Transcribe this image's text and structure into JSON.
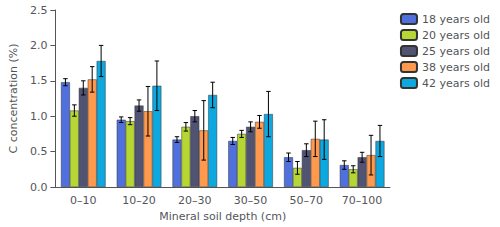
{
  "chart_data": {
    "type": "bar",
    "xlabel": "Mineral soil depth (cm)",
    "ylabel": "C concentration (%)",
    "categories": [
      "0–10",
      "10–20",
      "20–30",
      "30–50",
      "50–70",
      "70–100"
    ],
    "series": [
      {
        "name": "18 years old",
        "values": [
          1.48,
          0.95,
          0.67,
          0.65,
          0.42,
          0.31
        ],
        "errors": [
          0.05,
          0.04,
          0.04,
          0.05,
          0.06,
          0.06
        ]
      },
      {
        "name": "20 years old",
        "values": [
          1.08,
          0.93,
          0.85,
          0.75,
          0.27,
          0.25
        ],
        "errors": [
          0.08,
          0.05,
          0.06,
          0.05,
          0.09,
          0.05
        ]
      },
      {
        "name": "25 years old",
        "values": [
          1.4,
          1.15,
          1.0,
          0.85,
          0.52,
          0.42
        ],
        "errors": [
          0.1,
          0.08,
          0.08,
          0.07,
          0.09,
          0.07
        ]
      },
      {
        "name": "38 years old",
        "values": [
          1.52,
          1.07,
          0.8,
          0.92,
          0.68,
          0.45
        ],
        "errors": [
          0.18,
          0.35,
          0.42,
          0.09,
          0.25,
          0.28
        ]
      },
      {
        "name": "42 years old",
        "values": [
          1.78,
          1.43,
          1.3,
          1.03,
          0.67,
          0.65
        ],
        "errors": [
          0.22,
          0.35,
          0.18,
          0.32,
          0.28,
          0.22
        ]
      }
    ],
    "ylim": [
      0.0,
      2.5
    ],
    "yticks": [
      {
        "value": 0.0,
        "label": "0.0"
      },
      0.5,
      {
        "value": 1.0,
        "label": "1.0"
      },
      1.5,
      {
        "value": 2.0,
        "label": "2.0"
      },
      2.5
    ],
    "grid": false,
    "legend": "upper right"
  }
}
